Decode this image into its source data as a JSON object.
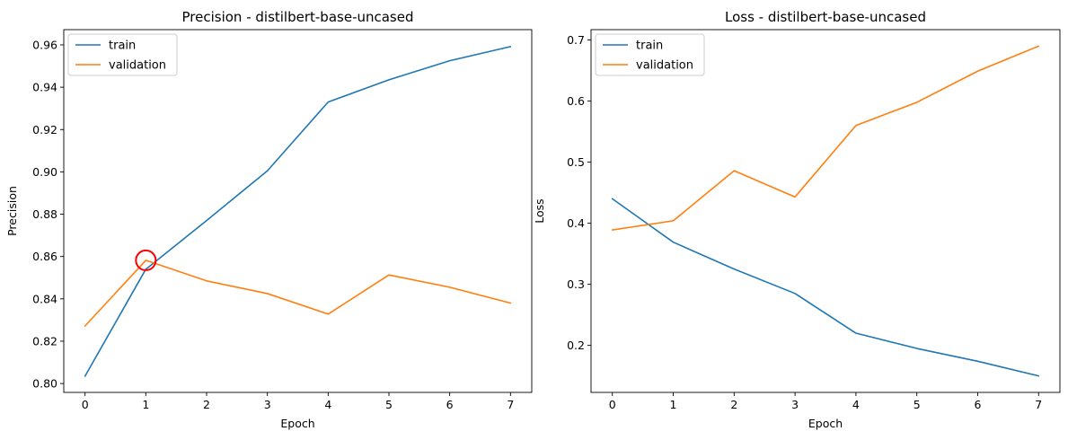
{
  "chart_data": [
    {
      "type": "line",
      "title": "Precision - distilbert-base-uncased",
      "xlabel": "Epoch",
      "ylabel": "Precision",
      "x": [
        0,
        1,
        2,
        3,
        4,
        5,
        6,
        7
      ],
      "xlim": [
        -0.35,
        7.35
      ],
      "ylim": [
        0.7958,
        0.9672
      ],
      "xticks": [
        0,
        1,
        2,
        3,
        4,
        5,
        6,
        7
      ],
      "yticks": [
        0.8,
        0.82,
        0.84,
        0.86,
        0.88,
        0.9,
        0.92,
        0.94,
        0.96
      ],
      "ytick_decimals": 2,
      "grid": false,
      "legend": "top-left",
      "series": [
        {
          "name": "train",
          "color": "#1f77b4",
          "values": [
            0.8035,
            0.854,
            0.877,
            0.9005,
            0.933,
            0.9435,
            0.9525,
            0.9592
          ]
        },
        {
          "name": "validation",
          "color": "#ff7f0e",
          "values": [
            0.8272,
            0.8582,
            0.8485,
            0.8425,
            0.8328,
            0.8513,
            0.8455,
            0.838
          ]
        }
      ],
      "annotation": {
        "shape": "circle",
        "color": "#ff0000",
        "x": 1,
        "y": 0.8582
      }
    },
    {
      "type": "line",
      "title": "Loss - distilbert-base-uncased",
      "xlabel": "Epoch",
      "ylabel": "Loss",
      "x": [
        0,
        1,
        2,
        3,
        4,
        5,
        6,
        7
      ],
      "xlim": [
        -0.35,
        7.35
      ],
      "ylim": [
        0.123,
        0.717
      ],
      "xticks": [
        0,
        1,
        2,
        3,
        4,
        5,
        6,
        7
      ],
      "yticks": [
        0.2,
        0.3,
        0.4,
        0.5,
        0.6,
        0.7
      ],
      "ytick_decimals": 1,
      "grid": false,
      "legend": "top-left",
      "series": [
        {
          "name": "train",
          "color": "#1f77b4",
          "values": [
            0.44,
            0.369,
            0.325,
            0.285,
            0.22,
            0.195,
            0.174,
            0.15
          ]
        },
        {
          "name": "validation",
          "color": "#ff7f0e",
          "values": [
            0.389,
            0.404,
            0.486,
            0.443,
            0.56,
            0.598,
            0.649,
            0.69
          ]
        }
      ]
    }
  ]
}
